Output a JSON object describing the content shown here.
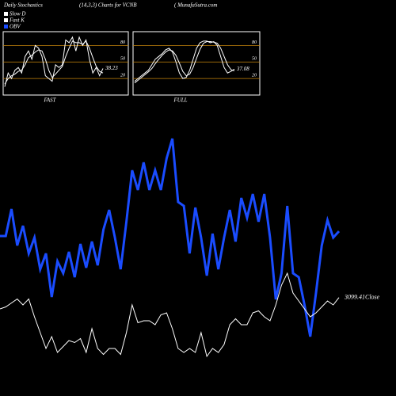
{
  "header": {
    "left": "Daily Stochastics",
    "center": "(14,3,3) Charts for VCNB",
    "right": "( MunafaSutra.com"
  },
  "chart_data": [
    {
      "type": "line",
      "label": "FAST",
      "ylim": [
        -10,
        105
      ],
      "yticks": [
        20,
        50,
        80
      ],
      "grid": true,
      "grid_color": "#c8860a",
      "series": [
        {
          "name": "Fast K",
          "color": "#ffffff",
          "values": [
            5,
            30,
            20,
            35,
            40,
            30,
            60,
            70,
            55,
            80,
            75,
            60,
            25,
            20,
            15,
            45,
            40,
            45,
            90,
            85,
            95,
            70,
            95,
            80,
            90,
            55,
            30,
            40,
            25,
            38.23
          ]
        },
        {
          "name": "Slow D",
          "color": "#ffffff",
          "values": [
            10,
            20,
            25,
            28,
            33,
            35,
            45,
            58,
            62,
            68,
            72,
            70,
            55,
            35,
            22,
            28,
            35,
            42,
            60,
            75,
            88,
            85,
            85,
            82,
            88,
            75,
            58,
            42,
            33,
            30
          ]
        }
      ]
    },
    {
      "type": "line",
      "label": "FULL",
      "ylim": [
        -10,
        105
      ],
      "yticks": [
        20,
        50,
        80
      ],
      "grid": true,
      "grid_color": "#c8860a",
      "series": [
        {
          "color": "#ffffff",
          "values": [
            15,
            20,
            25,
            30,
            35,
            45,
            55,
            60,
            65,
            72,
            75,
            68,
            50,
            30,
            20,
            22,
            35,
            55,
            75,
            85,
            88,
            88,
            85,
            87,
            80,
            60,
            40,
            30,
            33,
            37.08
          ]
        },
        {
          "color": "#ffffff",
          "values": [
            12,
            17,
            22,
            27,
            32,
            38,
            47,
            55,
            62,
            68,
            72,
            70,
            62,
            48,
            33,
            25,
            28,
            40,
            57,
            73,
            84,
            87,
            87,
            86,
            84,
            75,
            60,
            45,
            36,
            34
          ]
        }
      ]
    },
    {
      "type": "line",
      "ylim": [
        0,
        500
      ],
      "y2lim": [
        3000,
        3400
      ],
      "series": [
        {
          "name": "OBV",
          "color": "#1a4cff",
          "values": [
            202,
            202,
            236,
            190,
            215,
            180,
            200,
            160,
            180,
            125,
            170,
            155,
            182,
            150,
            192,
            162,
            195,
            165,
            210,
            235,
            200,
            160,
            220,
            285,
            260,
            295,
            260,
            285,
            260,
            300,
            325,
            245,
            240,
            180,
            238,
            200,
            152,
            205,
            160,
            200,
            235,
            195,
            250,
            225,
            255,
            220,
            255,
            200,
            122,
            155,
            240,
            155,
            150,
            115,
            75,
            130,
            190,
            222,
            200,
            208
          ]
        },
        {
          "name": "Close",
          "color": "#ffffff",
          "axis": "y2",
          "values": [
            3088,
            3090,
            3094,
            3098,
            3092,
            3098,
            3080,
            3064,
            3048,
            3060,
            3044,
            3050,
            3056,
            3054,
            3058,
            3044,
            3068,
            3048,
            3042,
            3048,
            3048,
            3042,
            3064,
            3092,
            3074,
            3076,
            3076,
            3072,
            3082,
            3084,
            3068,
            3048,
            3044,
            3048,
            3044,
            3064,
            3040,
            3048,
            3044,
            3052,
            3072,
            3078,
            3072,
            3072,
            3084,
            3086,
            3080,
            3076,
            3092,
            3112,
            3124,
            3104,
            3096,
            3088,
            3080,
            3084,
            3090,
            3096,
            3092,
            3099.41
          ]
        }
      ]
    }
  ]
}
